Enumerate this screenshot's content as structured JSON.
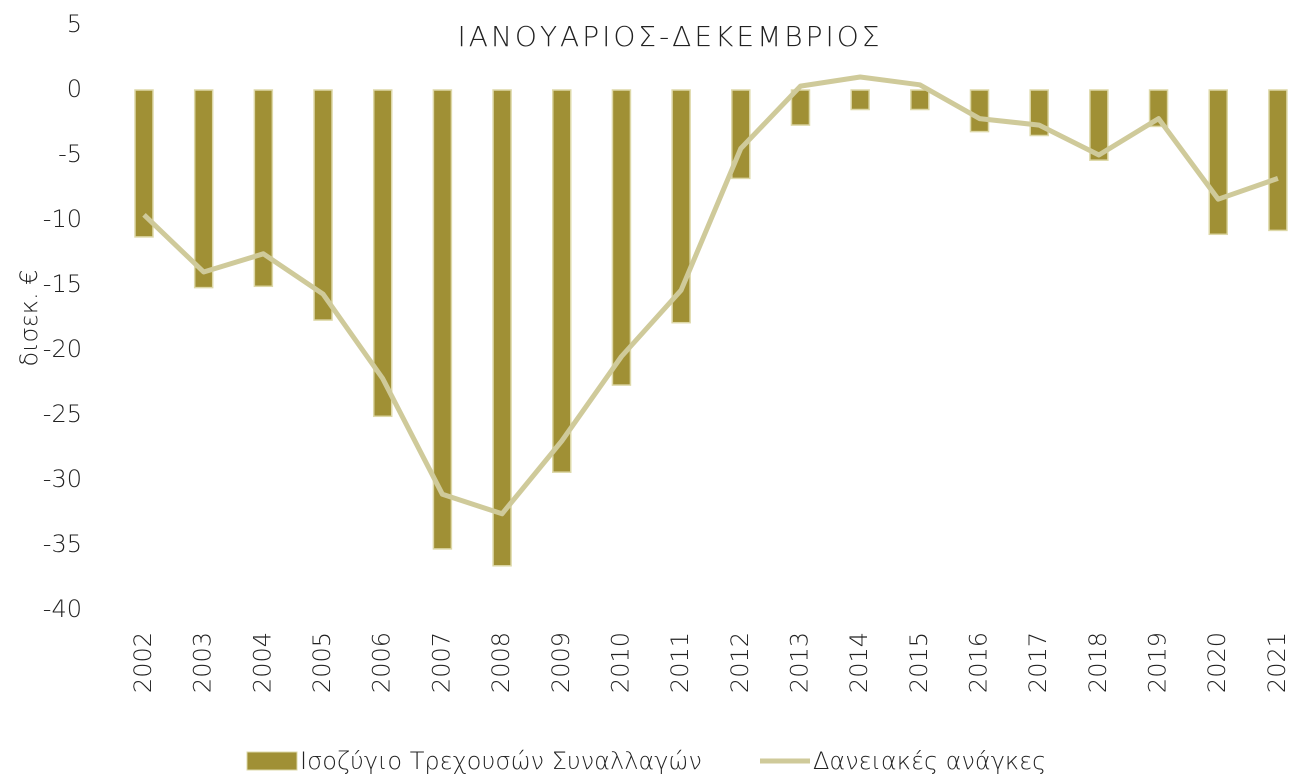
{
  "chart_data": {
    "type": "bar",
    "title": "ΙΑΝΟΥΑΡΙΟΣ-ΔΕΚΕΜΒΡΙΟΣ",
    "y_label": "δισεκ. €",
    "categories": [
      "2002",
      "2003",
      "2004",
      "2005",
      "2006",
      "2007",
      "2008",
      "2009",
      "2010",
      "2011",
      "2012",
      "2013",
      "2014",
      "2015",
      "2016",
      "2017",
      "2018",
      "2019",
      "2020",
      "2021"
    ],
    "series": [
      {
        "name": "Ισοζύγιο Τρεχουσών Συναλλαγών",
        "type": "bar",
        "color": "#a09035",
        "values": [
          -11.3,
          -15.2,
          -15.1,
          -17.7,
          -25.1,
          -35.3,
          -36.6,
          -29.4,
          -22.7,
          -17.9,
          -6.8,
          -2.7,
          -1.5,
          -1.5,
          -3.2,
          -3.5,
          -5.4,
          -2.8,
          -11.1,
          -10.8
        ]
      },
      {
        "name": "Δανειακές ανάγκες",
        "type": "line",
        "color": "#cfca9a",
        "values": [
          -9.6,
          -14.0,
          -12.6,
          -15.7,
          -22.2,
          -31.1,
          -32.6,
          -27.0,
          -20.5,
          -15.4,
          -4.5,
          0.3,
          1.0,
          0.4,
          -2.2,
          -2.7,
          -5.0,
          -2.2,
          -8.4,
          -6.8
        ]
      }
    ],
    "ylim": [
      -40,
      5
    ],
    "yticks": [
      5,
      0,
      -5,
      -10,
      -15,
      -20,
      -25,
      -30,
      -35,
      -40
    ],
    "grid": false,
    "legend": "bottom"
  }
}
